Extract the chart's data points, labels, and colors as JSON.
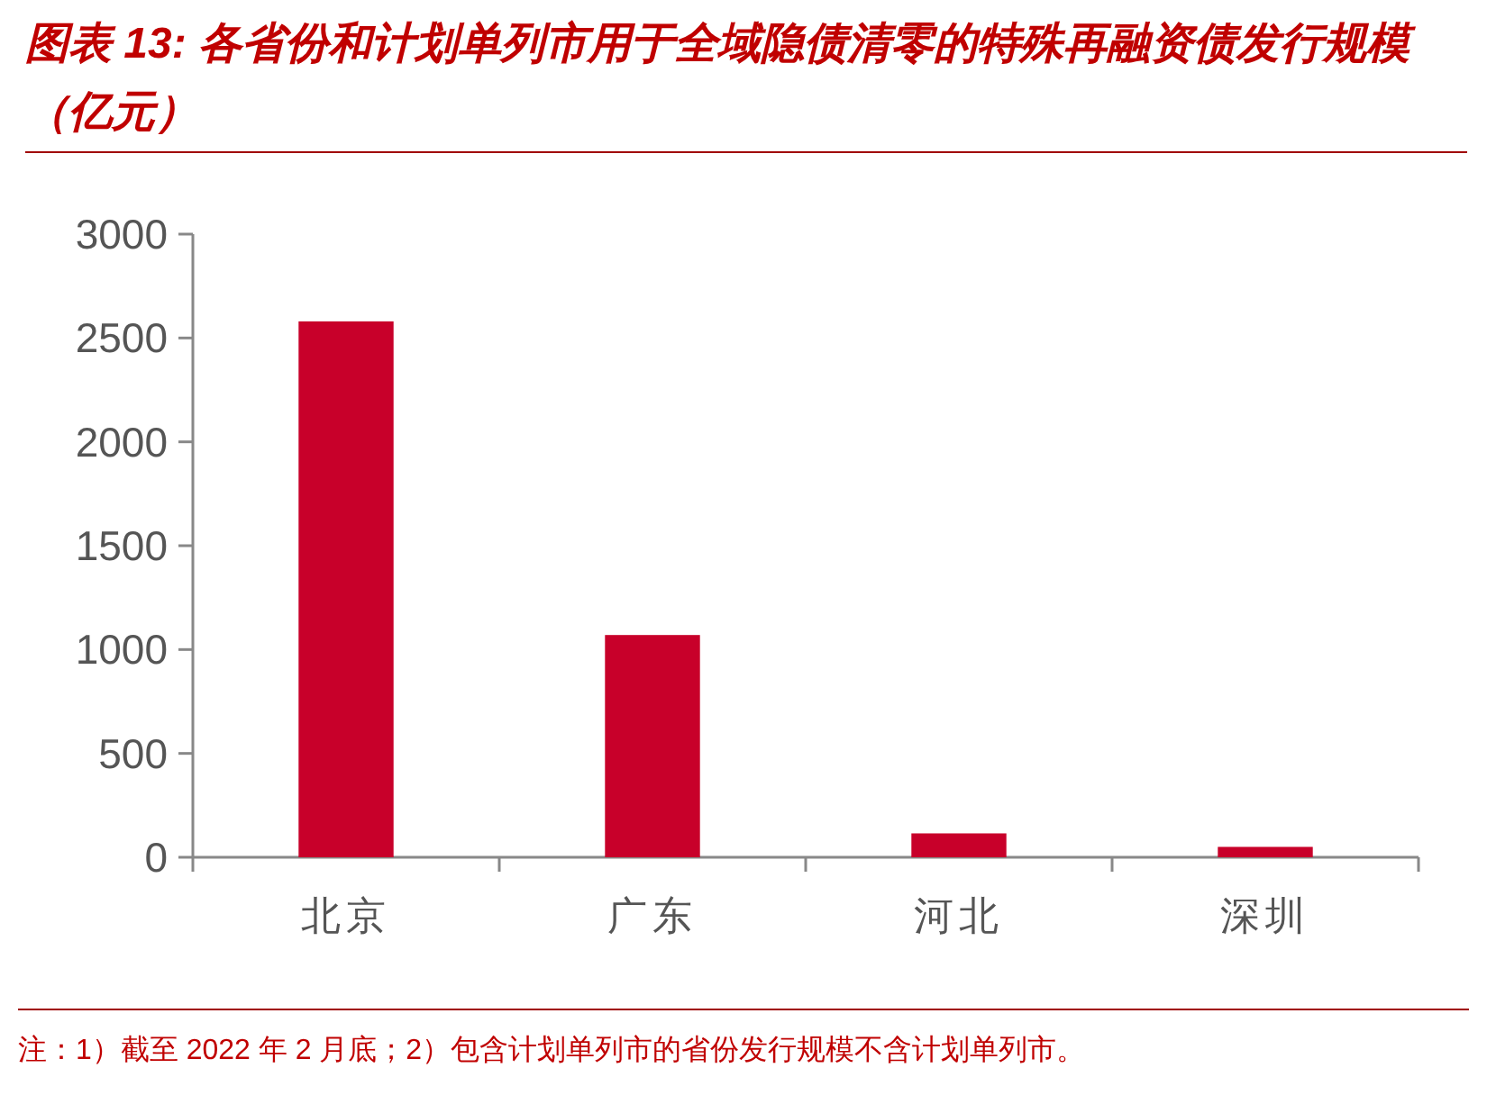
{
  "chart_data": {
    "type": "bar",
    "title": "图表 13: 各省份和计划单列市用于全域隐债清零的特殊再融资债发行规模（亿元）",
    "categories": [
      "北京",
      "广东",
      "河北",
      "深圳"
    ],
    "values": [
      2580,
      1070,
      115,
      50
    ],
    "color": "#c8002a",
    "ylim": [
      0,
      3000
    ],
    "yticks": [
      0,
      500,
      1000,
      1500,
      2000,
      2500,
      3000
    ],
    "grid": false,
    "annotations": [
      "注：1）截至 2022 年 2 月底；2）包含计划单列市的省份发行规模不含计划单列市。"
    ]
  }
}
